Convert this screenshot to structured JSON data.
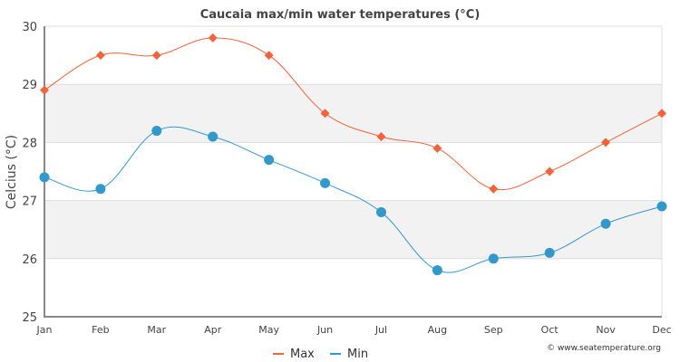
{
  "chart_data": {
    "type": "line",
    "title": "Caucaia max/min water temperatures (°C)",
    "xlabel": "",
    "ylabel": "Celcius (°C)",
    "categories": [
      "Jan",
      "Feb",
      "Mar",
      "Apr",
      "May",
      "Jun",
      "Jul",
      "Aug",
      "Sep",
      "Oct",
      "Nov",
      "Dec"
    ],
    "ylim": [
      25,
      30
    ],
    "yticks": [
      25,
      26,
      27,
      28,
      29,
      30
    ],
    "grid": true,
    "legend_position": "bottom-center",
    "series": [
      {
        "name": "Max",
        "color": "#f4623a",
        "marker": "diamond",
        "values": [
          28.9,
          29.5,
          29.5,
          29.8,
          29.5,
          28.5,
          28.1,
          27.9,
          27.2,
          27.5,
          28.0,
          28.5
        ]
      },
      {
        "name": "Min",
        "color": "#3399cc",
        "marker": "circle",
        "values": [
          27.4,
          27.2,
          28.2,
          28.1,
          27.7,
          27.3,
          26.8,
          25.8,
          26.0,
          26.1,
          26.6,
          26.9
        ]
      }
    ],
    "credit": "© www.seatemperature.org"
  }
}
